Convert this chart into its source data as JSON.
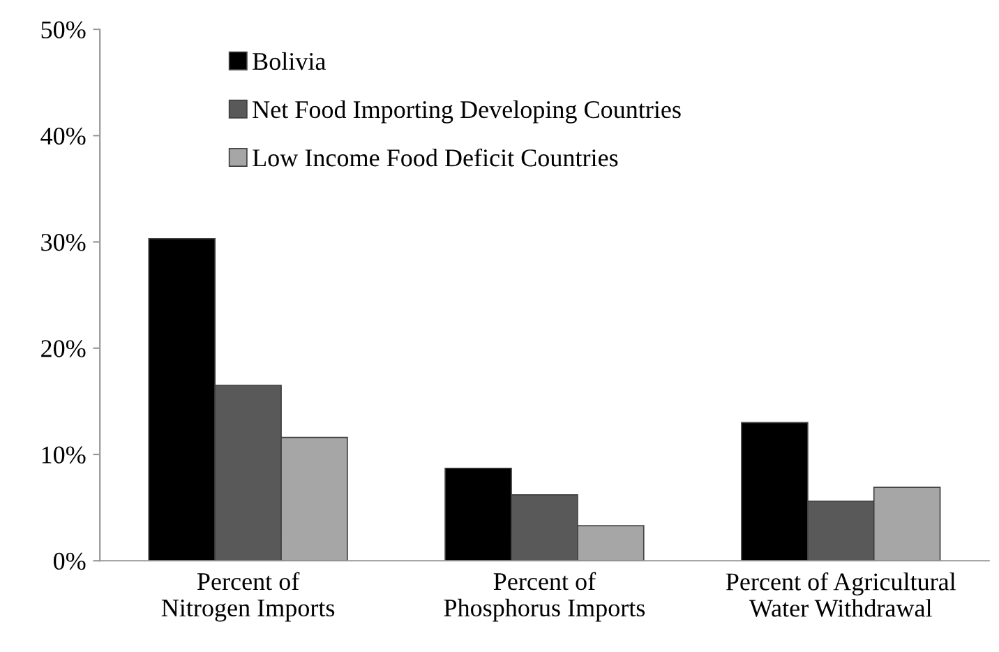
{
  "chart_data": {
    "type": "bar",
    "categories": [
      "Percent of\nNitrogen Imports",
      "Percent of\nPhosphorus Imports",
      "Percent of Agricultural\nWater Withdrawal"
    ],
    "series": [
      {
        "name": "Bolivia",
        "color": "#000000",
        "values": [
          30.3,
          8.7,
          13.0
        ]
      },
      {
        "name": "Net Food Importing Developing Countries",
        "color": "#595959",
        "values": [
          16.5,
          6.2,
          5.6
        ]
      },
      {
        "name": "Low Income Food Deficit Countries",
        "color": "#a6a6a6",
        "values": [
          11.6,
          3.3,
          6.9
        ]
      }
    ],
    "ylim": [
      0,
      50
    ],
    "yticks": [
      {
        "value": 0,
        "label": "0%"
      },
      {
        "value": 10,
        "label": "10%"
      },
      {
        "value": 20,
        "label": "20%"
      },
      {
        "value": 30,
        "label": "30%"
      },
      {
        "value": 40,
        "label": "40%"
      },
      {
        "value": 50,
        "label": "50%"
      }
    ],
    "grid": false,
    "legend": "top left"
  }
}
